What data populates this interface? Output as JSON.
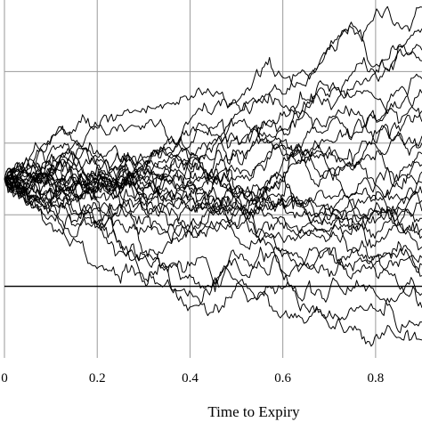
{
  "chart_data": {
    "type": "line",
    "title": "",
    "xlabel": "Time to Expiry",
    "ylabel": "",
    "xlim": [
      0.0,
      0.9
    ],
    "ylim": [
      0.0,
      1.0
    ],
    "x_ticks": [
      0.0,
      0.2,
      0.4,
      0.6,
      0.8
    ],
    "x_tick_labels": [
      "0",
      "0.2",
      "0.4",
      "0.6",
      "0.8"
    ],
    "y_gridlines": [
      0.2,
      0.4,
      0.6,
      0.8
    ],
    "barrier_level": 0.2,
    "start_value": 0.5,
    "grid": true,
    "num_paths": 28,
    "paths_endpoint_estimates": [
      0.98,
      0.92,
      0.86,
      0.83,
      0.78,
      0.74,
      0.69,
      0.66,
      0.62,
      0.6,
      0.57,
      0.54,
      0.52,
      0.49,
      0.46,
      0.44,
      0.41,
      0.39,
      0.36,
      0.34,
      0.31,
      0.28,
      0.26,
      0.23,
      0.18,
      0.14,
      0.1,
      0.05
    ]
  },
  "style": {
    "line_color": "#000000",
    "grid_color": "#9a9a9a",
    "background": "#ffffff"
  }
}
